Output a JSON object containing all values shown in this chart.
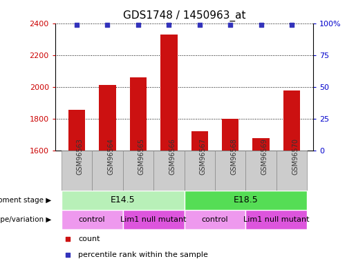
{
  "title": "GDS1748 / 1450963_at",
  "samples": [
    "GSM96563",
    "GSM96564",
    "GSM96565",
    "GSM96566",
    "GSM96567",
    "GSM96568",
    "GSM96569",
    "GSM96570"
  ],
  "bar_values": [
    1853,
    2010,
    2060,
    2330,
    1720,
    1800,
    1678,
    1975
  ],
  "percentile_values": [
    99,
    99,
    99,
    99,
    99,
    99,
    99,
    99
  ],
  "ylim_left": [
    1600,
    2400
  ],
  "yticks_left": [
    1600,
    1800,
    2000,
    2200,
    2400
  ],
  "ylim_right": [
    0,
    100
  ],
  "yticks_right": [
    0,
    25,
    50,
    75,
    100
  ],
  "bar_color": "#cc1111",
  "dot_color": "#3333bb",
  "bar_width": 0.55,
  "development_stage_label": "development stage",
  "genotype_label": "genotype/variation",
  "dev_stages": [
    {
      "label": "E14.5",
      "start": 0,
      "end": 3,
      "color": "#b8f0b8"
    },
    {
      "label": "E18.5",
      "start": 4,
      "end": 7,
      "color": "#55dd55"
    }
  ],
  "genotypes": [
    {
      "label": "control",
      "start": 0,
      "end": 1,
      "color": "#ee99ee"
    },
    {
      "label": "Lim1 null mutant",
      "start": 2,
      "end": 3,
      "color": "#dd55dd"
    },
    {
      "label": "control",
      "start": 4,
      "end": 5,
      "color": "#ee99ee"
    },
    {
      "label": "Lim1 null mutant",
      "start": 6,
      "end": 7,
      "color": "#dd55dd"
    }
  ],
  "legend_count_color": "#cc1111",
  "legend_dot_color": "#3333bb",
  "background_color": "#ffffff",
  "tick_label_color_left": "#cc0000",
  "tick_label_color_right": "#0000cc",
  "sample_box_color": "#cccccc",
  "sample_box_edge": "#888888"
}
